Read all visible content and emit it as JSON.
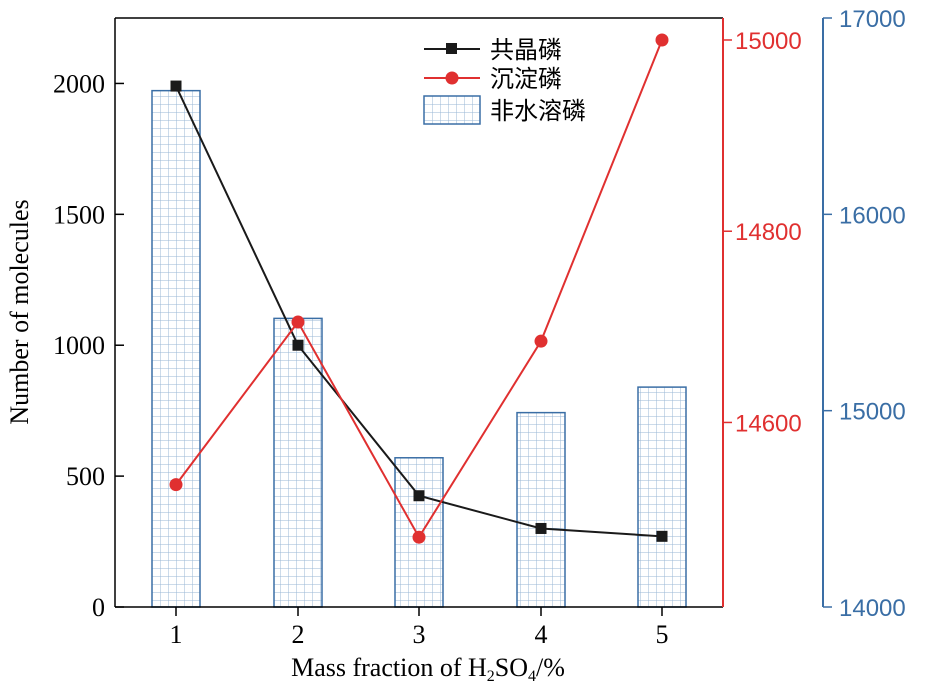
{
  "chart_data": {
    "type": "bar+line",
    "xlabel_main": "Mass fraction of H",
    "xlabel_sub1": "2",
    "xlabel_mid": "SO",
    "xlabel_sub2": "4",
    "xlabel_end": "/%",
    "ylabel": "Number of molecules",
    "categories": [
      "1",
      "2",
      "3",
      "4",
      "5"
    ],
    "axes": {
      "left": {
        "ylim": [
          0,
          2250
        ],
        "ticks": [
          "0",
          "500",
          "1000",
          "1500",
          "2000"
        ],
        "tick_values": [
          0,
          500,
          1000,
          1500,
          2000
        ]
      },
      "right_red": {
        "ylim": [
          14407,
          15023
        ],
        "ticks": [
          "14600",
          "14800",
          "15000"
        ],
        "tick_values": [
          14600,
          14800,
          15000
        ],
        "color": "#e03030"
      },
      "right_blue": {
        "ylim": [
          14000,
          17000
        ],
        "ticks": [
          "14000",
          "15000",
          "16000",
          "17000"
        ],
        "tick_values": [
          14000,
          15000,
          16000,
          17000
        ],
        "color": "#3a6ea5"
      }
    },
    "series": [
      {
        "name": "共晶磷",
        "type": "line",
        "axis": "left",
        "color": "#1a1a1a",
        "marker": "square",
        "values": [
          1990,
          1000,
          425,
          300,
          270
        ]
      },
      {
        "name": "沉淀磷",
        "type": "line",
        "axis": "right_red",
        "color": "#e03030",
        "marker": "circle",
        "values": [
          14535,
          14705,
          14480,
          14685,
          15000
        ]
      },
      {
        "name": "非水溶磷",
        "type": "bar",
        "axis": "right_blue",
        "color": "#3a6ea5",
        "fill": "grid",
        "values": [
          16630,
          15470,
          14760,
          14990,
          15120
        ]
      }
    ],
    "grid": false,
    "legend_position": "top-center"
  }
}
